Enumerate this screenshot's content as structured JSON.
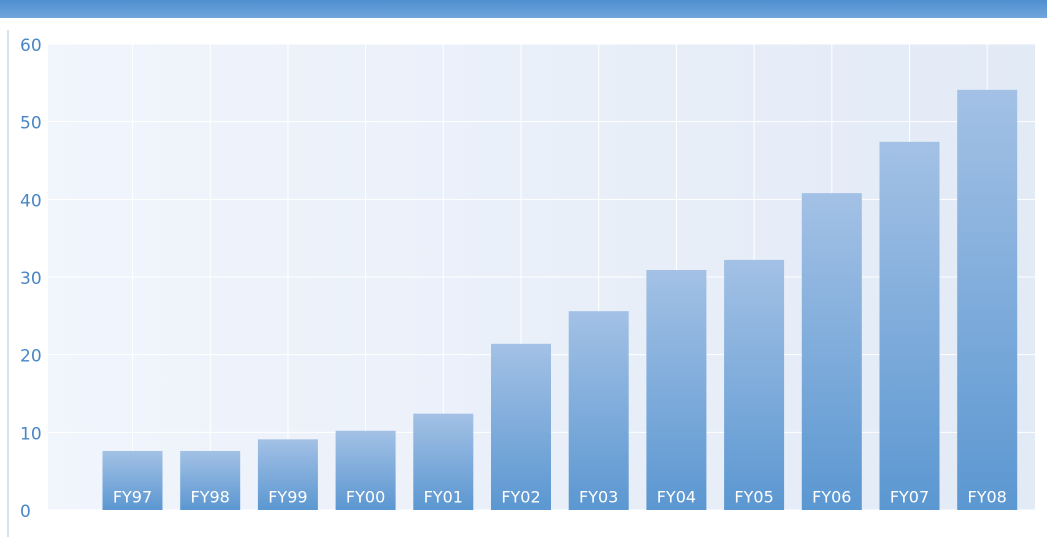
{
  "chart_data": {
    "type": "bar",
    "categories": [
      "FY97",
      "FY98",
      "FY99",
      "FY00",
      "FY01",
      "FY02",
      "FY03",
      "FY04",
      "FY05",
      "FY06",
      "FY07",
      "FY08"
    ],
    "values": [
      7.6,
      7.6,
      9.1,
      10.2,
      12.4,
      21.4,
      25.6,
      30.9,
      32.2,
      40.8,
      47.4,
      54.1
    ],
    "color": "#5b97d1",
    "ylim": [
      0,
      60
    ],
    "yticks": [
      0,
      10,
      20,
      30,
      40,
      50,
      60
    ],
    "grid": true
  }
}
